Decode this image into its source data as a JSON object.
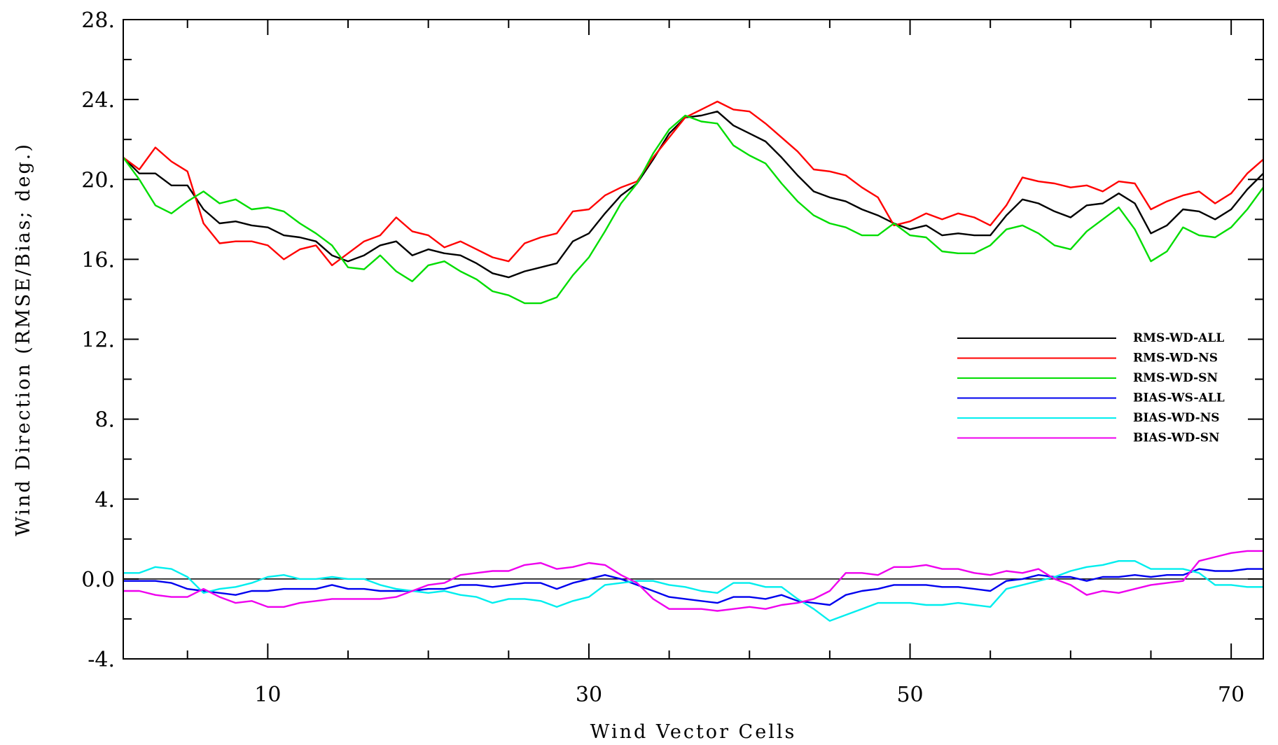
{
  "chart_data": {
    "type": "line",
    "xlabel": "Wind Vector Cells",
    "ylabel": "Wind Direction (RMSE/Bias; deg.)",
    "xlim": [
      1,
      72
    ],
    "ylim": [
      -4,
      28
    ],
    "x_ticks": [
      10,
      30,
      50,
      70
    ],
    "x_tick_labels": [
      "10",
      "30",
      "50",
      "70"
    ],
    "y_ticks": [
      -4,
      0,
      4,
      8,
      12,
      16,
      20,
      24,
      28
    ],
    "y_tick_labels": [
      "-4.",
      "0.0",
      "4.",
      "8.",
      "12.",
      "16.",
      "20.",
      "24.",
      "28."
    ],
    "y_minor_step": 2,
    "zero_line": true,
    "grid": false,
    "legend_position": "right",
    "x": [
      1,
      2,
      3,
      4,
      5,
      6,
      7,
      8,
      9,
      10,
      11,
      12,
      13,
      14,
      15,
      16,
      17,
      18,
      19,
      20,
      21,
      22,
      23,
      24,
      25,
      26,
      27,
      28,
      29,
      30,
      31,
      32,
      33,
      34,
      35,
      36,
      37,
      38,
      39,
      40,
      41,
      42,
      43,
      44,
      45,
      46,
      47,
      48,
      49,
      50,
      51,
      52,
      53,
      54,
      55,
      56,
      57,
      58,
      59,
      60,
      61,
      62,
      63,
      64,
      65,
      66,
      67,
      68,
      69,
      70,
      71,
      72
    ],
    "series": [
      {
        "name": "RMS-WD-ALL",
        "color": "#000000",
        "values": [
          21.1,
          20.3,
          20.3,
          19.7,
          19.7,
          18.5,
          17.8,
          17.9,
          17.7,
          17.6,
          17.2,
          17.1,
          16.9,
          16.2,
          15.9,
          16.2,
          16.7,
          16.9,
          16.2,
          16.5,
          16.3,
          16.2,
          15.8,
          15.3,
          15.1,
          15.4,
          15.6,
          15.8,
          16.9,
          17.3,
          18.3,
          19.2,
          19.8,
          21.0,
          22.3,
          23.1,
          23.2,
          23.4,
          22.7,
          22.3,
          21.9,
          21.1,
          20.2,
          19.4,
          19.1,
          18.9,
          18.5,
          18.2,
          17.8,
          17.5,
          17.7,
          17.2,
          17.3,
          17.2,
          17.2,
          18.2,
          19.0,
          18.8,
          18.4,
          18.1,
          18.7,
          18.8,
          19.3,
          18.8,
          17.3,
          17.7,
          18.5,
          18.4,
          18.0,
          18.5,
          19.5,
          20.3
        ]
      },
      {
        "name": "RMS-WD-NS",
        "color": "#ff0000",
        "values": [
          21.1,
          20.5,
          21.6,
          20.9,
          20.4,
          17.8,
          16.8,
          16.9,
          16.9,
          16.7,
          16.0,
          16.5,
          16.7,
          15.7,
          16.3,
          16.9,
          17.2,
          18.1,
          17.4,
          17.2,
          16.6,
          16.9,
          16.5,
          16.1,
          15.9,
          16.8,
          17.1,
          17.3,
          18.4,
          18.5,
          19.2,
          19.6,
          19.9,
          21.1,
          22.1,
          23.1,
          23.5,
          23.9,
          23.5,
          23.4,
          22.8,
          22.1,
          21.4,
          20.5,
          20.4,
          20.2,
          19.6,
          19.1,
          17.7,
          17.9,
          18.3,
          18.0,
          18.3,
          18.1,
          17.7,
          18.7,
          20.1,
          19.9,
          19.8,
          19.6,
          19.7,
          19.4,
          19.9,
          19.8,
          18.5,
          18.9,
          19.2,
          19.4,
          18.8,
          19.3,
          20.3,
          21.0
        ]
      },
      {
        "name": "RMS-WD-SN",
        "color": "#00dd00",
        "values": [
          21.1,
          20.0,
          18.7,
          18.3,
          18.9,
          19.4,
          18.8,
          19.0,
          18.5,
          18.6,
          18.4,
          17.8,
          17.3,
          16.7,
          15.6,
          15.5,
          16.2,
          15.4,
          14.9,
          15.7,
          15.9,
          15.4,
          15.0,
          14.4,
          14.2,
          13.8,
          13.8,
          14.1,
          15.2,
          16.1,
          17.4,
          18.8,
          19.8,
          21.3,
          22.5,
          23.2,
          22.9,
          22.8,
          21.7,
          21.2,
          20.8,
          19.8,
          18.9,
          18.2,
          17.8,
          17.6,
          17.2,
          17.2,
          17.8,
          17.2,
          17.1,
          16.4,
          16.3,
          16.3,
          16.7,
          17.5,
          17.7,
          17.3,
          16.7,
          16.5,
          17.4,
          18.0,
          18.6,
          17.5,
          15.9,
          16.4,
          17.6,
          17.2,
          17.1,
          17.6,
          18.5,
          19.6
        ]
      },
      {
        "name": "BIAS-WS-ALL",
        "color": "#0000ee",
        "values": [
          -0.1,
          -0.1,
          -0.1,
          -0.2,
          -0.5,
          -0.6,
          -0.7,
          -0.8,
          -0.6,
          -0.6,
          -0.5,
          -0.5,
          -0.5,
          -0.3,
          -0.5,
          -0.5,
          -0.6,
          -0.6,
          -0.6,
          -0.5,
          -0.5,
          -0.3,
          -0.3,
          -0.4,
          -0.3,
          -0.2,
          -0.2,
          -0.5,
          -0.2,
          0.0,
          0.2,
          0.0,
          -0.3,
          -0.6,
          -0.9,
          -1.0,
          -1.1,
          -1.2,
          -0.9,
          -0.9,
          -1.0,
          -0.8,
          -1.1,
          -1.2,
          -1.3,
          -0.8,
          -0.6,
          -0.5,
          -0.3,
          -0.3,
          -0.3,
          -0.4,
          -0.4,
          -0.5,
          -0.6,
          -0.1,
          0.0,
          0.2,
          0.1,
          0.1,
          -0.1,
          0.1,
          0.1,
          0.2,
          0.1,
          0.2,
          0.2,
          0.5,
          0.4,
          0.4,
          0.5,
          0.5
        ]
      },
      {
        "name": "BIAS-WD-NS",
        "color": "#00eeee",
        "values": [
          0.3,
          0.3,
          0.6,
          0.5,
          0.1,
          -0.7,
          -0.5,
          -0.4,
          -0.2,
          0.1,
          0.2,
          0.0,
          0.0,
          0.1,
          0.0,
          0.0,
          -0.3,
          -0.5,
          -0.6,
          -0.7,
          -0.6,
          -0.8,
          -0.9,
          -1.2,
          -1.0,
          -1.0,
          -1.1,
          -1.4,
          -1.1,
          -0.9,
          -0.3,
          -0.2,
          -0.1,
          -0.1,
          -0.3,
          -0.4,
          -0.6,
          -0.7,
          -0.2,
          -0.2,
          -0.4,
          -0.4,
          -1.0,
          -1.5,
          -2.1,
          -1.8,
          -1.5,
          -1.2,
          -1.2,
          -1.2,
          -1.3,
          -1.3,
          -1.2,
          -1.3,
          -1.4,
          -0.5,
          -0.3,
          -0.1,
          0.1,
          0.4,
          0.6,
          0.7,
          0.9,
          0.9,
          0.5,
          0.5,
          0.5,
          0.3,
          -0.3,
          -0.3,
          -0.4,
          -0.4
        ]
      },
      {
        "name": "BIAS-WD-SN",
        "color": "#ee00ee",
        "values": [
          -0.6,
          -0.6,
          -0.8,
          -0.9,
          -0.9,
          -0.5,
          -0.9,
          -1.2,
          -1.1,
          -1.4,
          -1.4,
          -1.2,
          -1.1,
          -1.0,
          -1.0,
          -1.0,
          -1.0,
          -0.9,
          -0.6,
          -0.3,
          -0.2,
          0.2,
          0.3,
          0.4,
          0.4,
          0.7,
          0.8,
          0.5,
          0.6,
          0.8,
          0.7,
          0.2,
          -0.2,
          -1.0,
          -1.5,
          -1.5,
          -1.5,
          -1.6,
          -1.5,
          -1.4,
          -1.5,
          -1.3,
          -1.2,
          -1.0,
          -0.6,
          0.3,
          0.3,
          0.2,
          0.6,
          0.6,
          0.7,
          0.5,
          0.5,
          0.3,
          0.2,
          0.4,
          0.3,
          0.5,
          0.0,
          -0.3,
          -0.8,
          -0.6,
          -0.7,
          -0.5,
          -0.3,
          -0.2,
          -0.1,
          0.9,
          1.1,
          1.3,
          1.4,
          1.4
        ]
      }
    ]
  }
}
